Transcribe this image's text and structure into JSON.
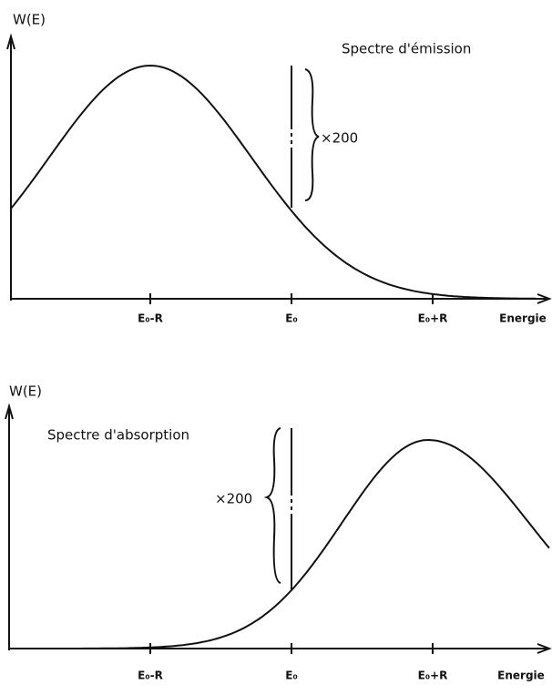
{
  "panels": [
    {
      "y_label": "W(E)",
      "title": "Spectre d'émission",
      "multiplier": "×200",
      "x_label": "Energie",
      "ticks": [
        "E₀-R",
        "E₀",
        "E₀+R"
      ]
    },
    {
      "y_label": "W(E)",
      "title": "Spectre d'absorption",
      "multiplier": "×200",
      "x_label": "Energie",
      "ticks": [
        "E₀-R",
        "E₀",
        "E₀+R"
      ]
    }
  ]
}
